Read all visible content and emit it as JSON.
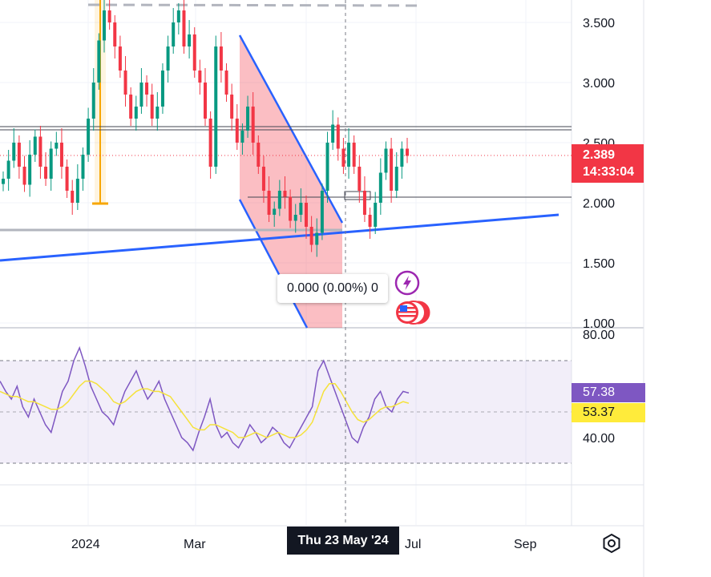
{
  "chart_data": [
    {
      "type": "candlestick",
      "price_axis": {
        "ticks": [
          "3.500",
          "3.000",
          "2.500",
          "2.000",
          "1.500",
          "1.000"
        ],
        "range": [
          1.0,
          3.65
        ]
      },
      "last_price": "2.389",
      "countdown": "14:33:04",
      "x_ticks": [
        "2024",
        "Mar",
        "Jul",
        "Sep"
      ],
      "crosshair_date": "Thu 23 May '24",
      "tooltip": "0.000 (0.00%) 0",
      "close_series": [
        2.2,
        2.35,
        2.5,
        2.3,
        2.15,
        2.4,
        2.55,
        2.3,
        2.2,
        2.45,
        2.5,
        2.3,
        2.1,
        2.0,
        2.2,
        2.4,
        2.7,
        3.0,
        3.35,
        3.6,
        3.5,
        3.3,
        3.1,
        2.9,
        2.7,
        2.8,
        3.0,
        2.9,
        2.7,
        2.8,
        3.1,
        3.3,
        3.5,
        3.6,
        3.3,
        3.4,
        3.1,
        3.0,
        2.7,
        2.3,
        3.3,
        3.1,
        2.9,
        2.7,
        2.5,
        2.6,
        2.8,
        2.5,
        2.3,
        2.1,
        1.9,
        1.95,
        2.1,
        2.05,
        1.85,
        1.9,
        2.0,
        1.8,
        1.65,
        1.75,
        2.1,
        2.5,
        2.65,
        2.45,
        2.3,
        2.5,
        2.3,
        2.1,
        1.9,
        1.8,
        2.0,
        2.25,
        2.45,
        2.1,
        2.3,
        2.45,
        2.39
      ]
    },
    {
      "type": "line",
      "name": "RSI",
      "y_ticks": [
        "80.00",
        "40.00"
      ],
      "upper_band": 70,
      "lower_band": 30,
      "rsi_value": "57.38",
      "ma_value": "53.37",
      "rsi": [
        62,
        58,
        55,
        60,
        52,
        48,
        55,
        50,
        45,
        42,
        50,
        58,
        62,
        70,
        75,
        68,
        60,
        55,
        50,
        48,
        45,
        52,
        58,
        62,
        66,
        60,
        55,
        58,
        62,
        55,
        50,
        45,
        40,
        38,
        35,
        42,
        48,
        55,
        45,
        40,
        42,
        38,
        36,
        40,
        45,
        42,
        38,
        40,
        44,
        42,
        38,
        36,
        40,
        44,
        48,
        52,
        66,
        70,
        64,
        58,
        52,
        46,
        40,
        38,
        44,
        48,
        55,
        58,
        52,
        50,
        55,
        58,
        57.38
      ],
      "ma": [
        58,
        57,
        56,
        56,
        55,
        54,
        54,
        53,
        52,
        51,
        51,
        52,
        54,
        57,
        60,
        62,
        62,
        61,
        59,
        57,
        54,
        53,
        54,
        56,
        58,
        59,
        59,
        58,
        58,
        57,
        56,
        53,
        50,
        47,
        44,
        43,
        43,
        45,
        45,
        44,
        43,
        42,
        40,
        40,
        41,
        42,
        41,
        40,
        41,
        42,
        41,
        40,
        40,
        41,
        43,
        46,
        52,
        58,
        61,
        61,
        58,
        54,
        50,
        47,
        46,
        47,
        49,
        51,
        52,
        52,
        53,
        54,
        53.37
      ]
    }
  ]
}
